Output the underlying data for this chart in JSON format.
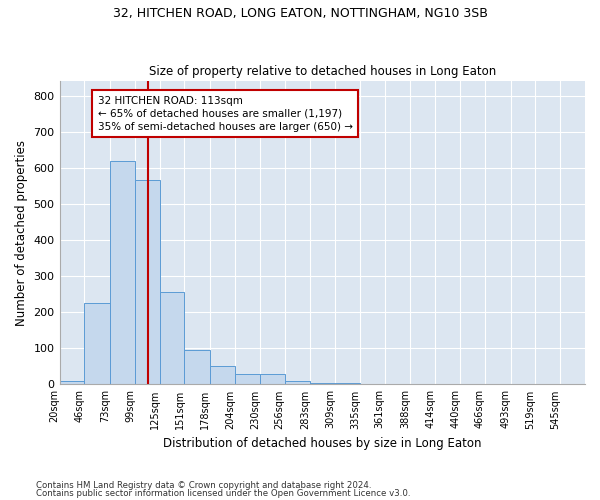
{
  "title1": "32, HITCHEN ROAD, LONG EATON, NOTTINGHAM, NG10 3SB",
  "title2": "Size of property relative to detached houses in Long Eaton",
  "xlabel": "Distribution of detached houses by size in Long Eaton",
  "ylabel": "Number of detached properties",
  "annotation_line1": "32 HITCHEN ROAD: 113sqm",
  "annotation_line2": "← 65% of detached houses are smaller (1,197)",
  "annotation_line3": "35% of semi-detached houses are larger (650) →",
  "property_size": 113,
  "bar_labels": [
    "20sqm",
    "46sqm",
    "73sqm",
    "99sqm",
    "125sqm",
    "151sqm",
    "178sqm",
    "204sqm",
    "230sqm",
    "256sqm",
    "283sqm",
    "309sqm",
    "335sqm",
    "361sqm",
    "388sqm",
    "414sqm",
    "440sqm",
    "466sqm",
    "493sqm",
    "519sqm",
    "545sqm"
  ],
  "bar_values": [
    10,
    225,
    620,
    565,
    255,
    95,
    50,
    30,
    30,
    10,
    5,
    5,
    0,
    0,
    0,
    0,
    0,
    0,
    0,
    0,
    0
  ],
  "bar_edges": [
    20,
    46,
    73,
    99,
    125,
    151,
    178,
    204,
    230,
    256,
    283,
    309,
    335,
    361,
    388,
    414,
    440,
    466,
    493,
    519,
    545,
    571
  ],
  "bar_color": "#c5d8ed",
  "bar_edgecolor": "#5b9bd5",
  "vline_color": "#c00000",
  "vline_x": 113,
  "bg_color": "#dce6f1",
  "annotation_box_color": "#c00000",
  "footer1": "Contains HM Land Registry data © Crown copyright and database right 2024.",
  "footer2": "Contains public sector information licensed under the Open Government Licence v3.0.",
  "ylim": [
    0,
    840
  ],
  "yticks": [
    0,
    100,
    200,
    300,
    400,
    500,
    600,
    700,
    800
  ]
}
